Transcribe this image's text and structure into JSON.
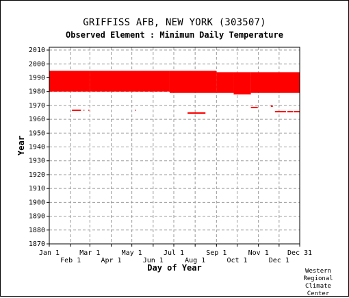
{
  "header": {
    "title": "GRIFFISS AFB, NEW YORK   (303507)",
    "subtitle": "Observed Element : Minimum Daily Temperature"
  },
  "credit": [
    "Western",
    "Regional",
    "Climate",
    "Center"
  ],
  "colors": {
    "data": "#ff0000",
    "grid": "#999999",
    "axis": "#000000"
  },
  "chart_data": {
    "type": "heatmap",
    "title": "GRIFFISS AFB, NEW YORK   (303507)",
    "subtitle": "Observed Element : Minimum Daily Temperature",
    "xlabel": "Day of Year",
    "ylabel": "Year",
    "xlim": [
      1,
      365
    ],
    "ylim": [
      1870,
      2012
    ],
    "grid": true,
    "x_ticks_row1": [
      {
        "label": "Jan 1",
        "day": 1
      },
      {
        "label": "Mar 1",
        "day": 60
      },
      {
        "label": "May 1",
        "day": 121
      },
      {
        "label": "Jul 1",
        "day": 182
      },
      {
        "label": "Sep 1",
        "day": 244
      },
      {
        "label": "Nov 1",
        "day": 305
      },
      {
        "label": "Dec 31",
        "day": 365
      }
    ],
    "x_ticks_row2": [
      {
        "label": "Feb 1",
        "day": 32
      },
      {
        "label": "Apr 1",
        "day": 91
      },
      {
        "label": "Jun 1",
        "day": 152
      },
      {
        "label": "Aug 1",
        "day": 213
      },
      {
        "label": "Oct 1",
        "day": 274
      },
      {
        "label": "Dec 1",
        "day": 335
      }
    ],
    "y_ticks": [
      1870,
      1880,
      1890,
      1900,
      1910,
      1920,
      1930,
      1940,
      1950,
      1960,
      1970,
      1980,
      1990,
      2000,
      2010
    ],
    "data_records": [
      {
        "day_start": 1,
        "day_end": 60,
        "year_start": 1980,
        "year_end": 1995
      },
      {
        "day_start": 60,
        "day_end": 176,
        "year_start": 1980,
        "year_end": 1995
      },
      {
        "day_start": 176,
        "day_end": 244,
        "year_start": 1979,
        "year_end": 1995
      },
      {
        "day_start": 244,
        "day_end": 269,
        "year_start": 1979,
        "year_end": 1994
      },
      {
        "day_start": 269,
        "day_end": 294,
        "year_start": 1978,
        "year_end": 1994
      },
      {
        "day_start": 294,
        "day_end": 365,
        "year_start": 1979,
        "year_end": 1994
      },
      {
        "day_start": 34,
        "day_end": 47,
        "year_start": 1966,
        "year_end": 1967
      },
      {
        "day_start": 51,
        "day_end": 52,
        "year_start": 1966,
        "year_end": 1967
      },
      {
        "day_start": 58,
        "day_end": 59,
        "year_start": 1966,
        "year_end": 1967
      },
      {
        "day_start": 126,
        "day_end": 127,
        "year_start": 1966,
        "year_end": 1967
      },
      {
        "day_start": 202,
        "day_end": 228,
        "year_start": 1964,
        "year_end": 1965
      },
      {
        "day_start": 294,
        "day_end": 304,
        "year_start": 1968,
        "year_end": 1969
      },
      {
        "day_start": 323,
        "day_end": 326,
        "year_start": 1969,
        "year_end": 1970
      },
      {
        "day_start": 329,
        "day_end": 345,
        "year_start": 1965,
        "year_end": 1966
      },
      {
        "day_start": 347,
        "day_end": 355,
        "year_start": 1965,
        "year_end": 1966
      },
      {
        "day_start": 356,
        "day_end": 365,
        "year_start": 1965,
        "year_end": 1966
      }
    ]
  }
}
